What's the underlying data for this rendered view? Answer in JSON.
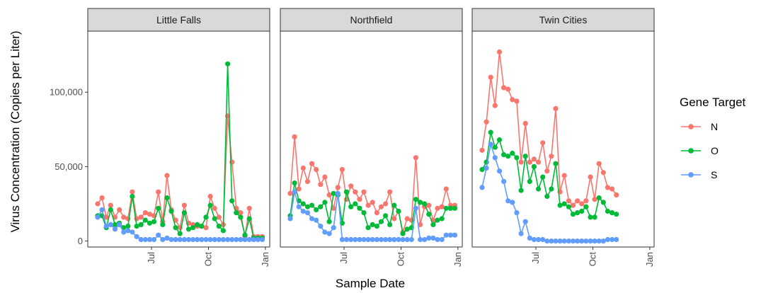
{
  "chart_data": {
    "type": "line",
    "xlabel": "Sample Date",
    "ylabel": "Virus Concentration (Copies per Liter)",
    "ylim": [
      -4000,
      141000
    ],
    "y_ticks": [
      0,
      50000,
      100000
    ],
    "y_tick_labels": [
      "0",
      "50,000",
      "100,000"
    ],
    "x_range": [
      "2021-03-20",
      "2022-01-08"
    ],
    "x_ticks": [
      "2021-07-01",
      "2021-10-01",
      "2022-01-01"
    ],
    "x_tick_labels": [
      "Jul",
      "Oct",
      "Jan"
    ],
    "legend": {
      "title": "Gene Target",
      "position": "right"
    },
    "series_colors": {
      "N": "#F8766D",
      "O": "#00BA38",
      "S": "#619CFF"
    },
    "facets": [
      {
        "name": "Little Falls",
        "x": [
          "2021-04-05",
          "2021-04-12",
          "2021-04-19",
          "2021-04-26",
          "2021-05-03",
          "2021-05-10",
          "2021-05-17",
          "2021-05-24",
          "2021-05-31",
          "2021-06-07",
          "2021-06-14",
          "2021-06-21",
          "2021-06-28",
          "2021-07-05",
          "2021-07-12",
          "2021-07-19",
          "2021-07-26",
          "2021-08-02",
          "2021-08-09",
          "2021-08-16",
          "2021-08-23",
          "2021-08-30",
          "2021-09-06",
          "2021-09-13",
          "2021-09-20",
          "2021-09-27",
          "2021-10-04",
          "2021-10-11",
          "2021-10-18",
          "2021-10-25",
          "2021-11-01",
          "2021-11-08",
          "2021-11-15",
          "2021-11-22",
          "2021-11-29",
          "2021-12-06",
          "2021-12-13",
          "2021-12-20",
          "2021-12-27"
        ],
        "series": [
          {
            "name": "N",
            "values": [
              25000,
              29000,
              16000,
              24000,
              16000,
              21000,
              16000,
              15000,
              33000,
              15000,
              16000,
              19000,
              18000,
              17000,
              33000,
              13000,
              44000,
              21000,
              14000,
              9000,
              24000,
              12000,
              11000,
              10000,
              10000,
              9000,
              30000,
              22000,
              16000,
              11000,
              84000,
              53000,
              22000,
              19000,
              3000,
              22000,
              3000,
              3000,
              3000
            ]
          },
          {
            "name": "O",
            "values": [
              17000,
              17000,
              9000,
              21000,
              11000,
              12000,
              9000,
              10000,
              30000,
              10000,
              11000,
              14000,
              12000,
              13000,
              22000,
              11000,
              29000,
              20000,
              9000,
              5000,
              19000,
              8000,
              9000,
              11000,
              10000,
              16000,
              24000,
              15000,
              10000,
              7000,
              119000,
              27000,
              19000,
              16000,
              4000,
              15000,
              2000,
              2000,
              2000
            ]
          },
          {
            "name": "S",
            "values": [
              16000,
              21000,
              10000,
              11000,
              8000,
              11000,
              6000,
              7000,
              6000,
              3000,
              1000,
              1000,
              1000,
              1000,
              4000,
              1000,
              2000,
              1000,
              1000,
              1000,
              1000,
              1000,
              1000,
              1000,
              1000,
              1000,
              1000,
              1000,
              1000,
              1000,
              1000,
              1000,
              1000,
              1000,
              1000,
              1000,
              1000,
              1000,
              1000
            ]
          }
        ]
      },
      {
        "name": "Northfield",
        "x": [
          "2021-04-05",
          "2021-04-12",
          "2021-04-19",
          "2021-04-26",
          "2021-05-03",
          "2021-05-10",
          "2021-05-17",
          "2021-05-24",
          "2021-05-31",
          "2021-06-07",
          "2021-06-14",
          "2021-06-21",
          "2021-06-28",
          "2021-07-05",
          "2021-07-12",
          "2021-07-19",
          "2021-07-26",
          "2021-08-02",
          "2021-08-09",
          "2021-08-16",
          "2021-08-23",
          "2021-08-30",
          "2021-09-06",
          "2021-09-13",
          "2021-09-20",
          "2021-09-27",
          "2021-10-04",
          "2021-10-11",
          "2021-10-18",
          "2021-10-25",
          "2021-11-01",
          "2021-11-08",
          "2021-11-15",
          "2021-11-22",
          "2021-11-29",
          "2021-12-06",
          "2021-12-13",
          "2021-12-20",
          "2021-12-27"
        ],
        "series": [
          {
            "name": "N",
            "values": [
              32000,
              70000,
              35000,
              49000,
              40000,
              52000,
              48000,
              38000,
              43000,
              31000,
              22000,
              36000,
              48000,
              28000,
              37000,
              33000,
              28000,
              33000,
              24000,
              26000,
              19000,
              23000,
              25000,
              33000,
              15000,
              20000,
              6000,
              15000,
              14000,
              56000,
              11000,
              23000,
              24000,
              14000,
              22000,
              23000,
              35000,
              24000,
              24000
            ]
          },
          {
            "name": "O",
            "values": [
              17000,
              39000,
              27000,
              25000,
              23000,
              24000,
              21000,
              23000,
              26000,
              13000,
              32000,
              31000,
              12000,
              33000,
              23000,
              25000,
              22000,
              19000,
              9000,
              11000,
              10000,
              13000,
              17000,
              11000,
              24000,
              20000,
              5000,
              8000,
              9000,
              28000,
              26000,
              25000,
              18000,
              11000,
              14000,
              15000,
              22000,
              22000,
              22000
            ]
          },
          {
            "name": "S",
            "values": [
              15000,
              33000,
              23000,
              20000,
              19000,
              15000,
              14000,
              10000,
              6000,
              5000,
              9000,
              32000,
              1000,
              1000,
              1000,
              1000,
              1000,
              1000,
              1000,
              1000,
              1000,
              1000,
              1000,
              1000,
              1000,
              1000,
              1000,
              1000,
              1000,
              22000,
              1000,
              1000,
              2000,
              2000,
              1000,
              1000,
              4000,
              4000,
              4000
            ]
          }
        ]
      },
      {
        "name": "Twin Cities",
        "x": [
          "2021-04-05",
          "2021-04-12",
          "2021-04-19",
          "2021-04-26",
          "2021-05-03",
          "2021-05-10",
          "2021-05-17",
          "2021-05-24",
          "2021-05-31",
          "2021-06-07",
          "2021-06-14",
          "2021-06-21",
          "2021-06-28",
          "2021-07-05",
          "2021-07-12",
          "2021-07-19",
          "2021-07-26",
          "2021-08-02",
          "2021-08-09",
          "2021-08-16",
          "2021-08-23",
          "2021-08-30",
          "2021-09-06",
          "2021-09-13",
          "2021-09-20",
          "2021-09-27",
          "2021-10-04",
          "2021-10-11",
          "2021-10-18",
          "2021-10-25",
          "2021-11-01",
          "2021-11-08"
        ],
        "series": [
          {
            "name": "N",
            "values": [
              61000,
              80000,
              110000,
              91000,
              127000,
              103000,
              102000,
              95000,
              94000,
              53000,
              79000,
              53000,
              55000,
              53000,
              66000,
              47000,
              57000,
              89000,
              33000,
              44000,
              27000,
              24000,
              27000,
              25000,
              27000,
              43000,
              28000,
              52000,
              46000,
              36000,
              35000,
              31000
            ]
          },
          {
            "name": "O",
            "values": [
              48000,
              53000,
              73000,
              63000,
              68000,
              58000,
              57000,
              59000,
              56000,
              34000,
              57000,
              40000,
              50000,
              35000,
              43000,
              30000,
              35000,
              52000,
              24000,
              25000,
              23000,
              18000,
              19000,
              20000,
              23000,
              16000,
              16000,
              29000,
              26000,
              20000,
              19000,
              18000
            ]
          },
          {
            "name": "S",
            "values": [
              36000,
              49000,
              65000,
              56000,
              47000,
              40000,
              27000,
              26000,
              19000,
              5000,
              13000,
              2000,
              1000,
              1000,
              1000,
              0,
              0,
              0,
              0,
              0,
              0,
              0,
              0,
              0,
              0,
              0,
              0,
              0,
              0,
              1000,
              1000,
              1000
            ]
          }
        ]
      }
    ]
  }
}
